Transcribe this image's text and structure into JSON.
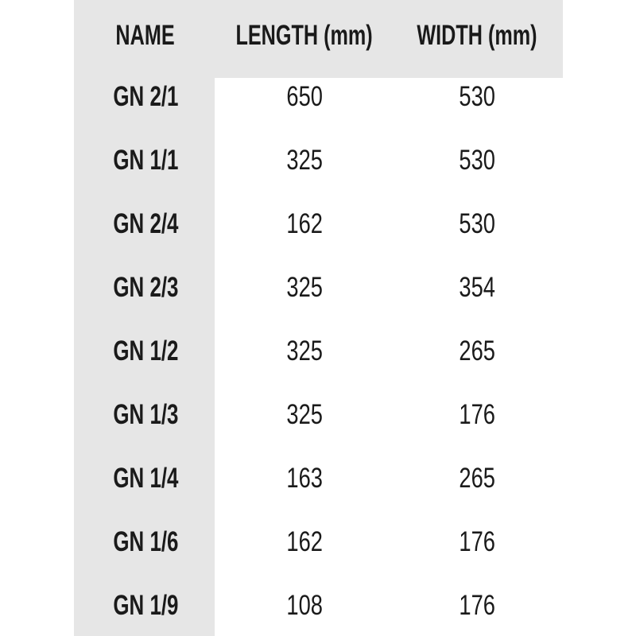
{
  "table": {
    "headers": [
      "NAME",
      "LENGTH (mm)",
      "WIDTH (mm)"
    ],
    "rows": [
      [
        "GN 2/1",
        "650",
        "530"
      ],
      [
        "GN 1/1",
        "325",
        "530"
      ],
      [
        "GN 2/4",
        "162",
        "530"
      ],
      [
        "GN 2/3",
        "325",
        "354"
      ],
      [
        "GN 1/2",
        "325",
        "265"
      ],
      [
        "GN 1/3",
        "325",
        "176"
      ],
      [
        "GN 1/4",
        "163",
        "265"
      ],
      [
        "GN 1/6",
        "162",
        "176"
      ],
      [
        "GN 1/9",
        "108",
        "176"
      ]
    ]
  },
  "colors": {
    "header_bg": "#e6e6e6",
    "text": "#1a1a1a"
  }
}
